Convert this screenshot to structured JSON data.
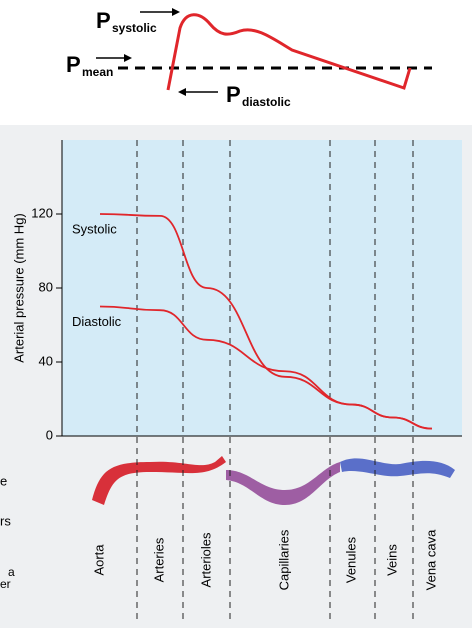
{
  "diagram": {
    "systolic": {
      "symbol": "P",
      "sub": "systolic"
    },
    "mean": {
      "symbol": "P",
      "sub": "mean"
    },
    "diastolic": {
      "symbol": "P",
      "sub": "diastolic"
    }
  },
  "fragments": [
    "e",
    "rs",
    "a",
    "er"
  ],
  "chart_data": {
    "type": "line",
    "ylabel": "Arterial pressure (mm Hg)",
    "categories": [
      "Aorta",
      "Arteries",
      "Arterioles",
      "Capillaries",
      "Venules",
      "Veins",
      "Vena cava"
    ],
    "series": [
      {
        "name": "Systolic",
        "color": "#e0262b",
        "values": [
          120,
          119,
          80,
          32,
          17,
          10,
          4
        ]
      },
      {
        "name": "Diastolic",
        "color": "#e0262b",
        "values": [
          70,
          68,
          52,
          35,
          17,
          10,
          4
        ]
      }
    ],
    "ylim": [
      0,
      160
    ],
    "yticks": [
      0,
      40,
      80,
      120
    ]
  }
}
